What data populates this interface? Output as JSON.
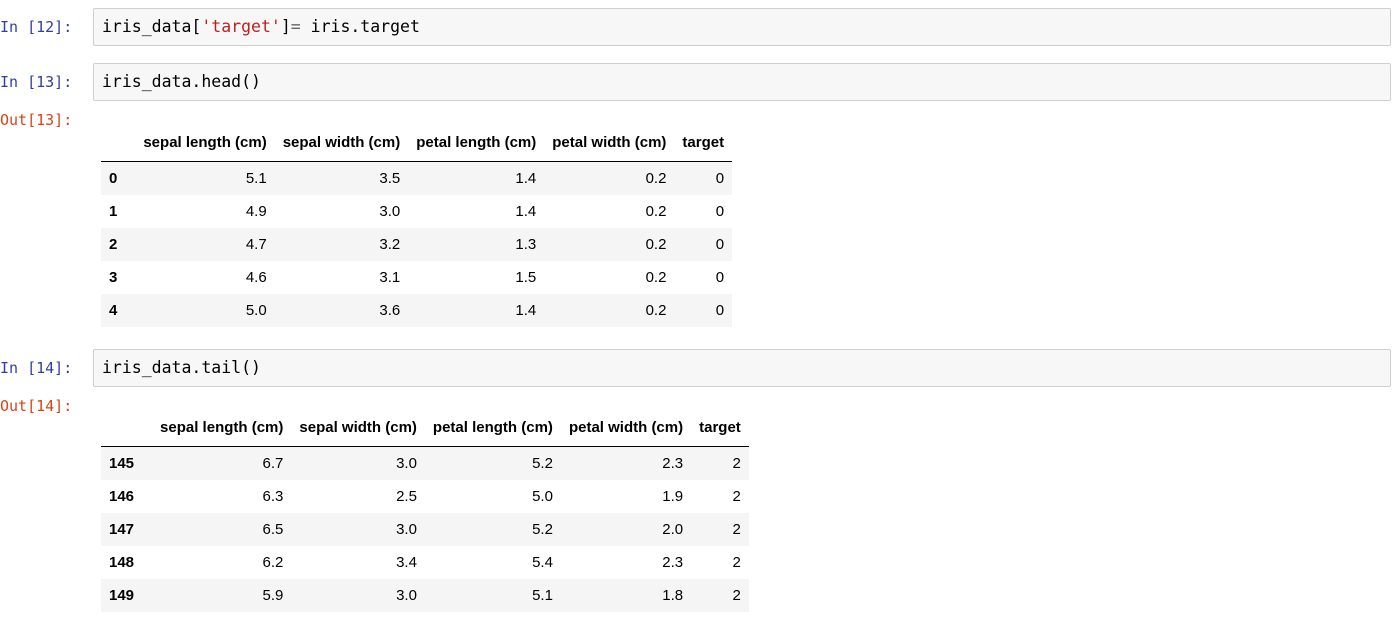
{
  "cells": [
    {
      "in_prompt": "In [12]:",
      "code_parts": [
        "iris_data[",
        "'target'",
        "]",
        "=",
        " iris.target"
      ]
    },
    {
      "in_prompt": "In [13]:",
      "code": "iris_data.head()",
      "out_prompt": "Out[13]:",
      "table": {
        "columns": [
          "sepal length (cm)",
          "sepal width (cm)",
          "petal length (cm)",
          "petal width (cm)",
          "target"
        ],
        "rows": [
          {
            "index": "0",
            "values": [
              "5.1",
              "3.5",
              "1.4",
              "0.2",
              "0"
            ]
          },
          {
            "index": "1",
            "values": [
              "4.9",
              "3.0",
              "1.4",
              "0.2",
              "0"
            ]
          },
          {
            "index": "2",
            "values": [
              "4.7",
              "3.2",
              "1.3",
              "0.2",
              "0"
            ]
          },
          {
            "index": "3",
            "values": [
              "4.6",
              "3.1",
              "1.5",
              "0.2",
              "0"
            ]
          },
          {
            "index": "4",
            "values": [
              "5.0",
              "3.6",
              "1.4",
              "0.2",
              "0"
            ]
          }
        ]
      }
    },
    {
      "in_prompt": "In [14]:",
      "code": "iris_data.tail()",
      "out_prompt": "Out[14]:",
      "table": {
        "columns": [
          "sepal length (cm)",
          "sepal width (cm)",
          "petal length (cm)",
          "petal width (cm)",
          "target"
        ],
        "rows": [
          {
            "index": "145",
            "values": [
              "6.7",
              "3.0",
              "5.2",
              "2.3",
              "2"
            ]
          },
          {
            "index": "146",
            "values": [
              "6.3",
              "2.5",
              "5.0",
              "1.9",
              "2"
            ]
          },
          {
            "index": "147",
            "values": [
              "6.5",
              "3.0",
              "5.2",
              "2.0",
              "2"
            ]
          },
          {
            "index": "148",
            "values": [
              "6.2",
              "3.4",
              "5.4",
              "2.3",
              "2"
            ]
          },
          {
            "index": "149",
            "values": [
              "5.9",
              "3.0",
              "5.1",
              "1.8",
              "2"
            ]
          }
        ]
      }
    }
  ]
}
